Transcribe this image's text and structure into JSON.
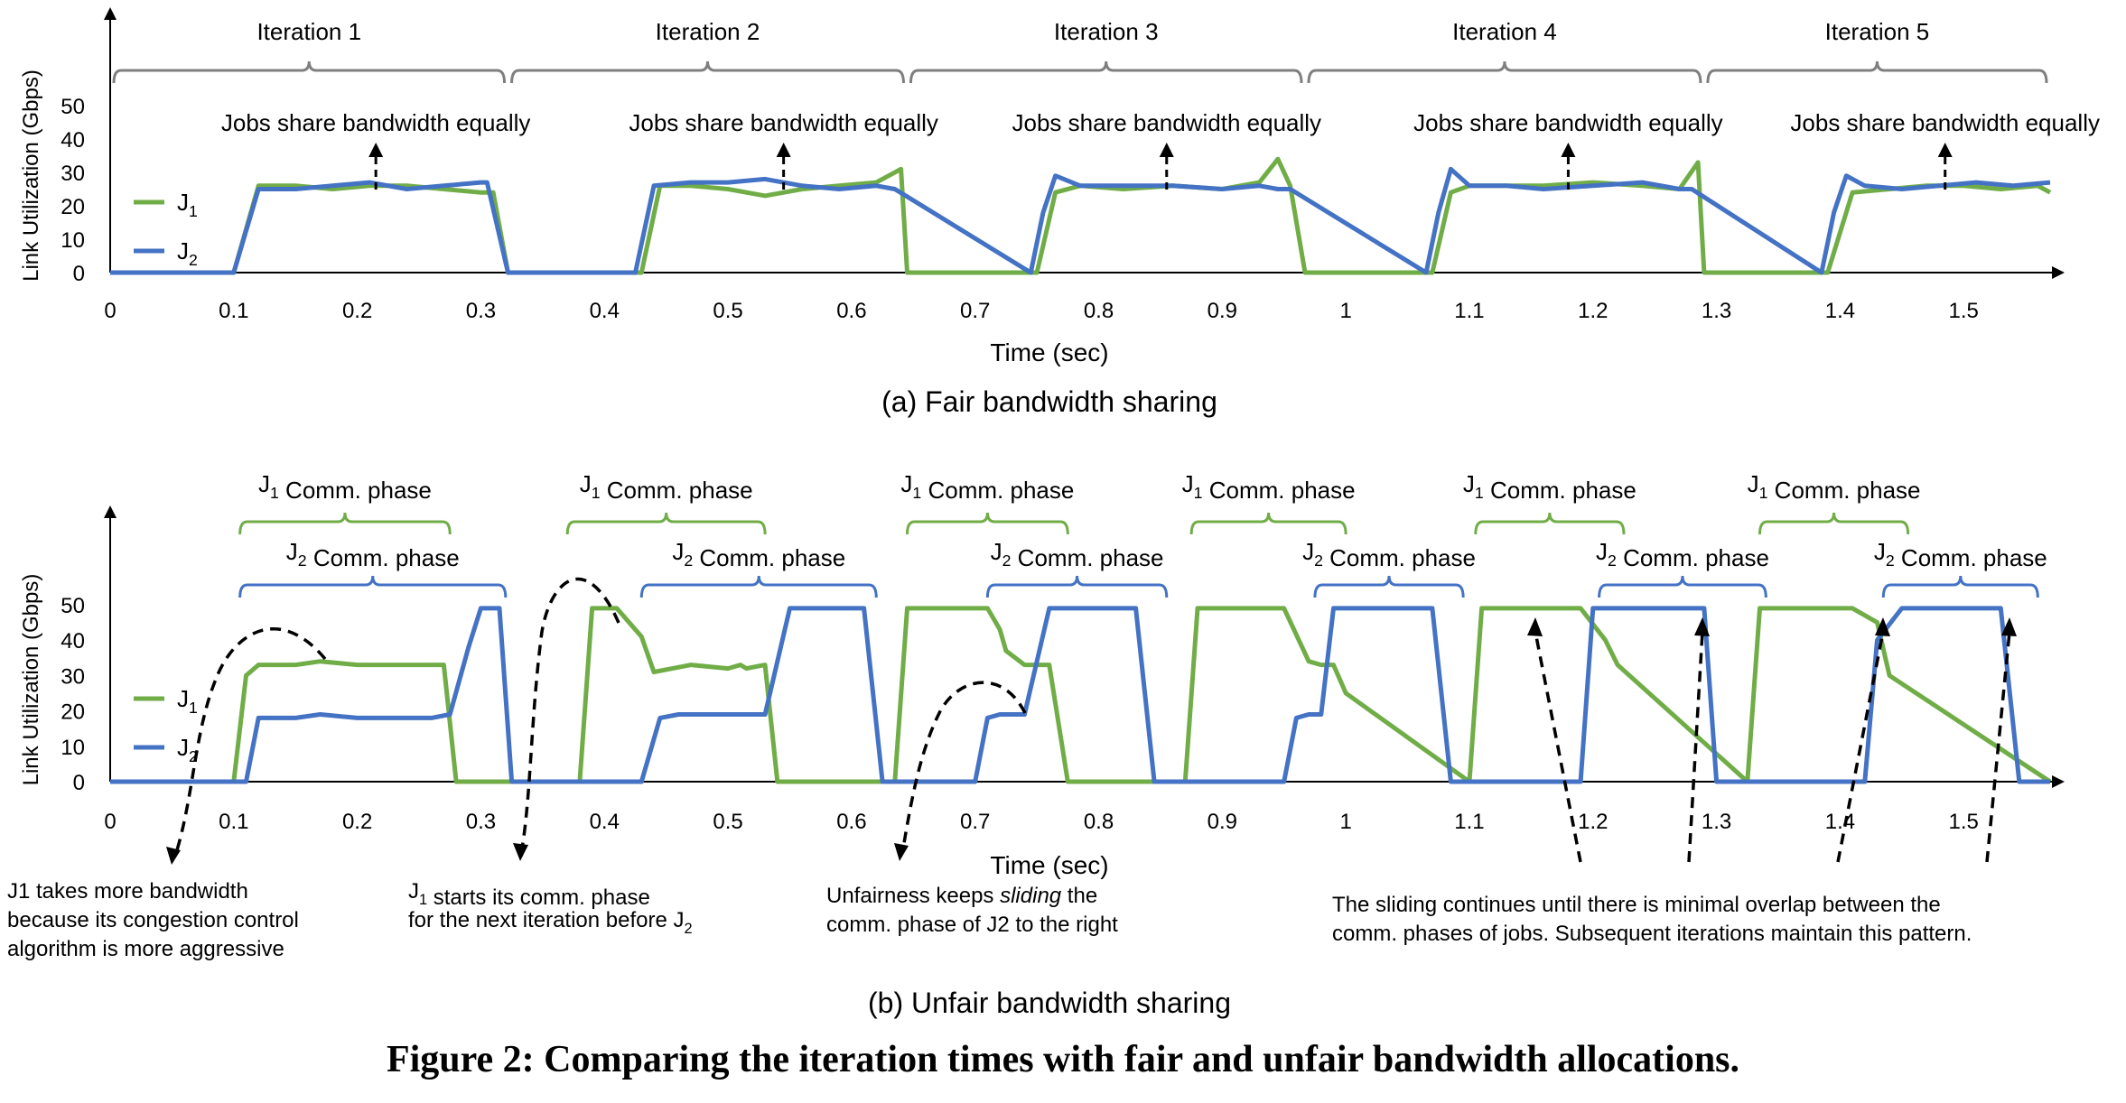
{
  "figure": {
    "caption": "Figure 2: Comparing the iteration times with fair and unfair bandwidth allocations.",
    "colors": {
      "J1": "#70ad47",
      "J2": "#4472c4",
      "axis": "#000000",
      "bracket_gray": "#7f7f7f"
    }
  },
  "chart_data": [
    {
      "type": "line",
      "subtitle": "(a) Fair bandwidth sharing",
      "xlabel": "Time (sec)",
      "ylabel": "Link Utilization (Gbps)",
      "xlim": [
        0,
        1.57
      ],
      "ylim": [
        0,
        50
      ],
      "x_ticks": [
        "0",
        "0.1",
        "0.2",
        "0.3",
        "0.4",
        "0.5",
        "0.6",
        "0.7",
        "0.8",
        "0.9",
        "1",
        "1.1",
        "1.2",
        "1.3",
        "1.4",
        "1.5"
      ],
      "y_ticks": [
        "0",
        "10",
        "20",
        "30",
        "40",
        "50"
      ],
      "legend": {
        "placement": "left",
        "entries": [
          {
            "label": "J",
            "sub": "1",
            "color": "#70ad47"
          },
          {
            "label": "J",
            "sub": "2",
            "color": "#4472c4"
          }
        ]
      },
      "iterations": [
        {
          "label": "Iteration 1",
          "x0": 0.0,
          "x1": 0.322
        },
        {
          "label": "Iteration 2",
          "x0": 0.322,
          "x1": 0.645
        },
        {
          "label": "Iteration 3",
          "x0": 0.645,
          "x1": 0.967
        },
        {
          "label": "Iteration 4",
          "x0": 0.967,
          "x1": 1.29
        },
        {
          "label": "Iteration 5",
          "x0": 1.29,
          "x1": 1.57
        }
      ],
      "annotations": [
        {
          "text": "Jobs share bandwidth equally",
          "x": 0.215
        },
        {
          "text": "Jobs share bandwidth equally",
          "x": 0.545
        },
        {
          "text": "Jobs share bandwidth equally",
          "x": 0.855
        },
        {
          "text": "Jobs share bandwidth equally",
          "x": 1.18
        },
        {
          "text": "Jobs share bandwidth equally",
          "x": 1.485
        }
      ],
      "series": [
        {
          "name": "J1",
          "color": "#70ad47",
          "x": [
            0,
            0.1,
            0.12,
            0.15,
            0.18,
            0.21,
            0.24,
            0.27,
            0.3,
            0.31,
            0.322,
            0.43,
            0.445,
            0.47,
            0.5,
            0.53,
            0.56,
            0.59,
            0.62,
            0.64,
            0.645,
            0.75,
            0.765,
            0.785,
            0.82,
            0.86,
            0.9,
            0.93,
            0.945,
            0.955,
            0.967,
            1.07,
            1.085,
            1.1,
            1.13,
            1.16,
            1.2,
            1.24,
            1.27,
            1.285,
            1.29,
            1.39,
            1.41,
            1.44,
            1.47,
            1.5,
            1.53,
            1.56,
            1.57
          ],
          "y": [
            0,
            0,
            26,
            26,
            25,
            26,
            26,
            25,
            24,
            24,
            0,
            0,
            26,
            26,
            25,
            23,
            25,
            26,
            27,
            31,
            0,
            0,
            24,
            26,
            25,
            26,
            25,
            27,
            34,
            26,
            0,
            0,
            24,
            26,
            26,
            26,
            27,
            26,
            25,
            33,
            0,
            0,
            24,
            25,
            26,
            26,
            25,
            26,
            24
          ]
        },
        {
          "name": "J2",
          "color": "#4472c4",
          "x": [
            0,
            0.1,
            0.12,
            0.15,
            0.18,
            0.21,
            0.24,
            0.27,
            0.3,
            0.305,
            0.322,
            0.425,
            0.44,
            0.47,
            0.5,
            0.53,
            0.56,
            0.59,
            0.62,
            0.635,
            0.745,
            0.755,
            0.765,
            0.785,
            0.82,
            0.86,
            0.9,
            0.93,
            0.945,
            0.955,
            1.065,
            1.075,
            1.085,
            1.1,
            1.13,
            1.16,
            1.2,
            1.24,
            1.27,
            1.28,
            1.385,
            1.395,
            1.405,
            1.42,
            1.45,
            1.48,
            1.51,
            1.54,
            1.57
          ],
          "y": [
            0,
            0,
            25,
            25,
            26,
            27,
            25,
            26,
            27,
            27,
            0,
            0,
            26,
            27,
            27,
            28,
            26,
            25,
            26,
            25,
            0,
            18,
            29,
            26,
            26,
            26,
            25,
            26,
            25,
            25,
            0,
            18,
            31,
            26,
            26,
            25,
            26,
            27,
            25,
            25,
            0,
            18,
            29,
            26,
            25,
            26,
            27,
            26,
            27
          ]
        }
      ]
    },
    {
      "type": "line",
      "subtitle": "(b) Unfair bandwidth sharing",
      "xlabel": "Time (sec)",
      "ylabel": "Link Utilization (Gbps)",
      "xlim": [
        0,
        1.57
      ],
      "ylim": [
        0,
        50
      ],
      "x_ticks": [
        "0",
        "0.1",
        "0.2",
        "0.3",
        "0.4",
        "0.5",
        "0.6",
        "0.7",
        "0.8",
        "0.9",
        "1",
        "1.1",
        "1.2",
        "1.3",
        "1.4",
        "1.5"
      ],
      "y_ticks": [
        "0",
        "10",
        "20",
        "30",
        "40",
        "50"
      ],
      "legend": {
        "placement": "left",
        "entries": [
          {
            "label": "J",
            "sub": "1",
            "color": "#70ad47"
          },
          {
            "label": "J",
            "sub": "2",
            "color": "#4472c4"
          }
        ]
      },
      "phase_brackets": {
        "J1": {
          "label": "J",
          "sub": "1",
          "suffix": " Comm. phase",
          "color": "#70ad47",
          "ranges": [
            [
              0.105,
              0.275
            ],
            [
              0.37,
              0.53
            ],
            [
              0.645,
              0.775
            ],
            [
              0.875,
              1.0
            ],
            [
              1.105,
              1.225
            ],
            [
              1.335,
              1.455
            ]
          ]
        },
        "J2": {
          "label": "J",
          "sub": "2",
          "suffix": " Comm. phase",
          "color": "#4472c4",
          "ranges": [
            [
              0.105,
              0.32
            ],
            [
              0.43,
              0.62
            ],
            [
              0.71,
              0.855
            ],
            [
              0.975,
              1.095
            ],
            [
              1.205,
              1.34
            ],
            [
              1.435,
              1.56
            ]
          ]
        }
      },
      "notes": [
        {
          "lines": [
            "J1 takes more bandwidth",
            "because its congestion control",
            "algorithm is more aggressive"
          ]
        },
        {
          "lines": [
            "J",
            "1",
            " starts its comm. phase",
            "for the next iteration before J",
            "2"
          ]
        },
        {
          "lines": [
            "Unfairness keeps ",
            "sliding",
            " the",
            "comm. phase of J2 to the right"
          ]
        },
        {
          "lines": [
            "The sliding continues until there is minimal overlap between the",
            "comm. phases of jobs. Subsequent iterations maintain this pattern."
          ]
        }
      ],
      "series": [
        {
          "name": "J1",
          "color": "#70ad47",
          "x": [
            0,
            0.1,
            0.11,
            0.12,
            0.15,
            0.17,
            0.2,
            0.23,
            0.26,
            0.27,
            0.28,
            0.38,
            0.39,
            0.41,
            0.43,
            0.44,
            0.47,
            0.5,
            0.51,
            0.515,
            0.53,
            0.54,
            0.635,
            0.645,
            0.69,
            0.71,
            0.72,
            0.725,
            0.74,
            0.755,
            0.76,
            0.775,
            0.87,
            0.88,
            0.93,
            0.95,
            0.97,
            0.98,
            0.99,
            1.0,
            1.1,
            1.11,
            1.17,
            1.19,
            1.21,
            1.22,
            1.325,
            1.335,
            1.39,
            1.41,
            1.43,
            1.44,
            1.57
          ],
          "y": [
            0,
            0,
            30,
            33,
            33,
            34,
            33,
            33,
            33,
            33,
            0,
            0,
            49,
            49,
            41,
            31,
            33,
            32,
            33,
            32,
            33,
            0,
            0,
            49,
            49,
            49,
            43,
            37,
            33,
            33,
            33,
            0,
            0,
            49,
            49,
            49,
            34,
            33,
            33,
            25,
            0,
            49,
            49,
            49,
            40,
            33,
            0,
            49,
            49,
            49,
            45,
            30,
            0
          ]
        },
        {
          "name": "J2",
          "color": "#4472c4",
          "x": [
            0,
            0.1,
            0.11,
            0.12,
            0.15,
            0.17,
            0.2,
            0.23,
            0.26,
            0.275,
            0.29,
            0.3,
            0.31,
            0.315,
            0.325,
            0.43,
            0.445,
            0.46,
            0.49,
            0.52,
            0.53,
            0.55,
            0.6,
            0.61,
            0.625,
            0.7,
            0.71,
            0.72,
            0.74,
            0.76,
            0.77,
            0.82,
            0.83,
            0.845,
            0.95,
            0.96,
            0.97,
            0.98,
            0.99,
            1.0,
            1.06,
            1.07,
            1.085,
            1.19,
            1.2,
            1.215,
            1.28,
            1.29,
            1.3,
            1.42,
            1.43,
            1.45,
            1.52,
            1.53,
            1.545,
            1.57
          ],
          "y": [
            0,
            0,
            0,
            18,
            18,
            19,
            18,
            18,
            18,
            19,
            38,
            49,
            49,
            49,
            0,
            0,
            18,
            19,
            19,
            19,
            19,
            49,
            49,
            49,
            0,
            0,
            18,
            19,
            19,
            49,
            49,
            49,
            49,
            0,
            0,
            18,
            19,
            19,
            49,
            49,
            49,
            49,
            0,
            0,
            49,
            49,
            49,
            49,
            0,
            0,
            40,
            49,
            49,
            49,
            0,
            0
          ]
        }
      ]
    }
  ]
}
